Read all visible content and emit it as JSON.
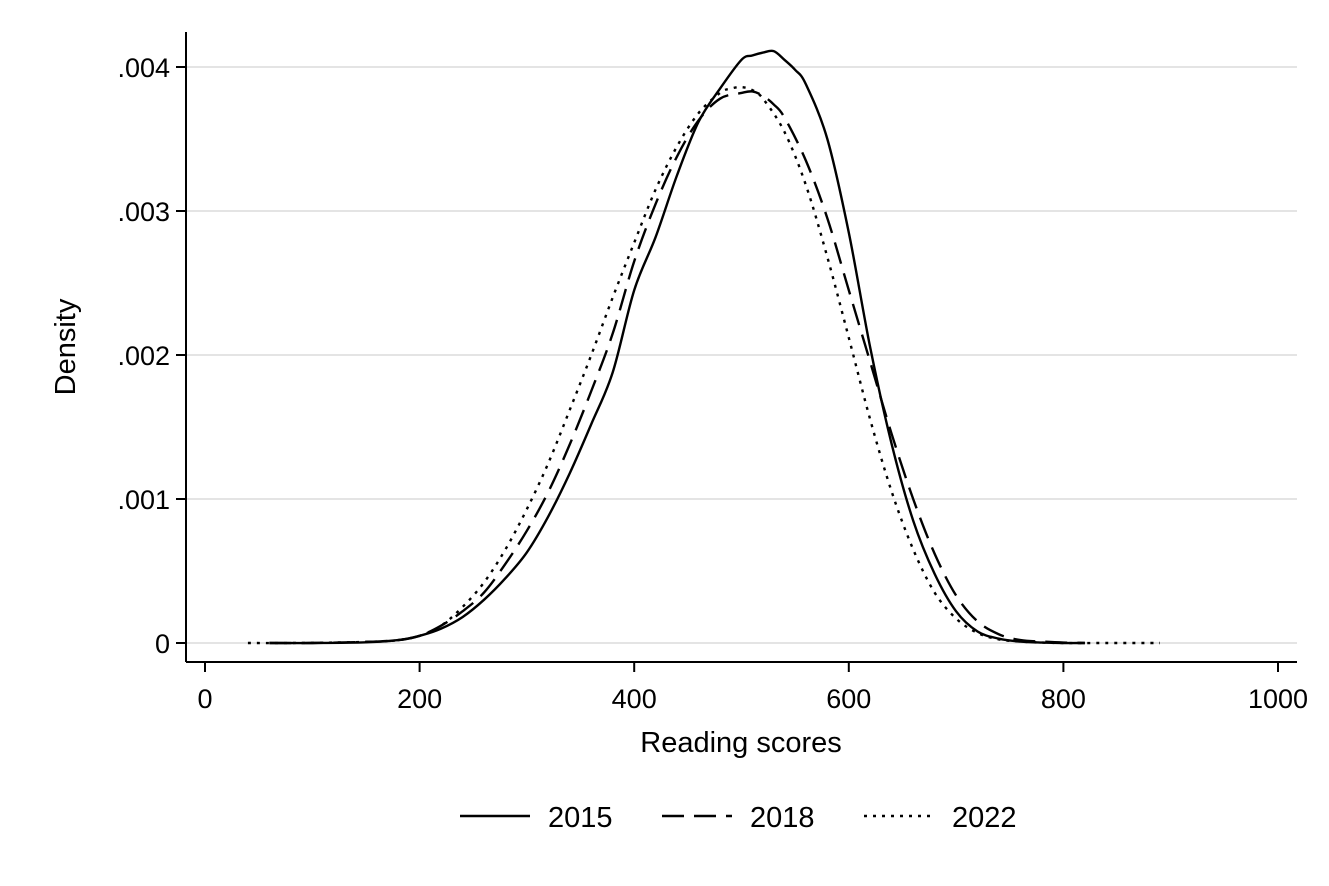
{
  "chart_data": {
    "type": "line",
    "title": "",
    "xlabel": "Reading scores",
    "ylabel": "Density",
    "xlim": [
      0,
      1000
    ],
    "ylim": [
      0,
      0.004
    ],
    "x_ticks": [
      {
        "value": 0,
        "label": "0"
      },
      {
        "value": 200,
        "label": "200"
      },
      {
        "value": 400,
        "label": "400"
      },
      {
        "value": 600,
        "label": "600"
      },
      {
        "value": 800,
        "label": "800"
      },
      {
        "value": 1000,
        "label": "1000"
      }
    ],
    "y_ticks": [
      {
        "value": 0,
        "label": "0"
      },
      {
        "value": 0.001,
        "label": ".001"
      },
      {
        "value": 0.002,
        "label": ".002"
      },
      {
        "value": 0.003,
        "label": ".003"
      },
      {
        "value": 0.004,
        "label": ".004"
      }
    ],
    "grid": "horizontal",
    "legend_position": "bottom",
    "series": [
      {
        "name": "2015",
        "style": "solid",
        "color": "#000000",
        "x": [
          60,
          100,
          150,
          180,
          200,
          220,
          240,
          260,
          280,
          300,
          320,
          340,
          360,
          380,
          400,
          420,
          440,
          460,
          480,
          500,
          510,
          520,
          530,
          540,
          550,
          560,
          580,
          600,
          620,
          640,
          660,
          680,
          700,
          720,
          740,
          760,
          780,
          800,
          820
        ],
        "y": [
          0.0,
          0.0,
          5e-06,
          2e-05,
          5e-05,
          0.0001,
          0.00018,
          0.0003,
          0.00045,
          0.00063,
          0.00088,
          0.00118,
          0.00152,
          0.00188,
          0.00245,
          0.00282,
          0.00325,
          0.00362,
          0.00385,
          0.00405,
          0.00408,
          0.0041,
          0.00411,
          0.00405,
          0.00398,
          0.00388,
          0.0035,
          0.00285,
          0.00205,
          0.00138,
          0.00085,
          0.00048,
          0.00022,
          8e-05,
          3e-05,
          1e-05,
          3e-06,
          0.0,
          0.0
        ]
      },
      {
        "name": "2018",
        "style": "dashed",
        "color": "#000000",
        "x": [
          60,
          100,
          150,
          180,
          200,
          220,
          240,
          260,
          280,
          300,
          320,
          340,
          360,
          380,
          400,
          420,
          440,
          460,
          480,
          500,
          510,
          520,
          530,
          540,
          560,
          580,
          600,
          620,
          640,
          660,
          680,
          700,
          720,
          740,
          760,
          780,
          800,
          820
        ],
        "y": [
          0.0,
          0.0,
          8e-06,
          2e-05,
          5e-05,
          0.00012,
          0.00022,
          0.00035,
          0.00055,
          0.00078,
          0.00105,
          0.00138,
          0.00175,
          0.00215,
          0.00265,
          0.00305,
          0.00338,
          0.00363,
          0.00378,
          0.00382,
          0.00383,
          0.0038,
          0.00374,
          0.00365,
          0.00335,
          0.00295,
          0.00245,
          0.00195,
          0.00145,
          0.001,
          0.00062,
          0.00033,
          0.00015,
          6e-05,
          2e-05,
          1e-05,
          3e-06,
          0.0
        ]
      },
      {
        "name": "2022",
        "style": "dotted",
        "color": "#000000",
        "x": [
          40,
          80,
          120,
          160,
          180,
          200,
          220,
          240,
          260,
          280,
          300,
          320,
          340,
          360,
          380,
          400,
          420,
          440,
          460,
          480,
          490,
          500,
          510,
          520,
          540,
          560,
          580,
          600,
          620,
          640,
          660,
          680,
          700,
          720,
          740,
          760,
          780,
          800,
          840,
          890
        ],
        "y": [
          0.0,
          0.0,
          3e-06,
          1e-05,
          2e-05,
          5e-05,
          0.00012,
          0.00025,
          0.00042,
          0.00065,
          0.00093,
          0.00125,
          0.00162,
          0.002,
          0.0024,
          0.00278,
          0.00315,
          0.00345,
          0.00368,
          0.00382,
          0.00385,
          0.00386,
          0.00384,
          0.00378,
          0.00355,
          0.00318,
          0.00268,
          0.00212,
          0.00155,
          0.00105,
          0.00065,
          0.00035,
          0.00017,
          7e-05,
          2.5e-05,
          1e-05,
          3e-06,
          0.0,
          0.0,
          0.0
        ]
      }
    ]
  }
}
